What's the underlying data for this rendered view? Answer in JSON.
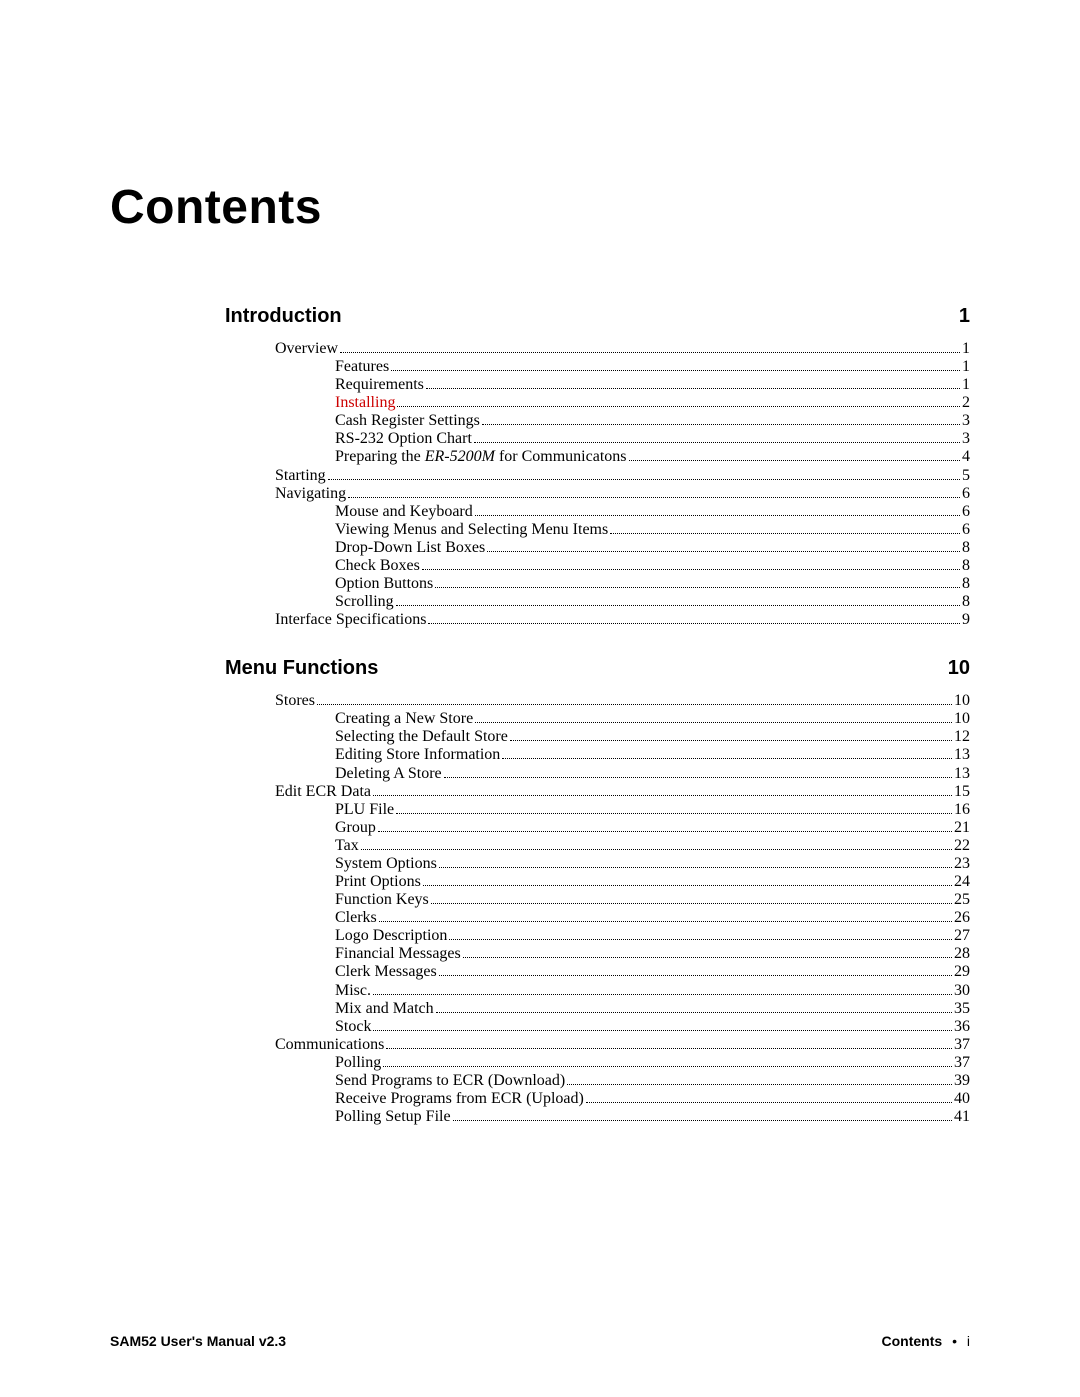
{
  "title": "Contents",
  "colors": {
    "text": "#000000",
    "highlight": "#cc0000",
    "background": "#ffffff"
  },
  "fonts": {
    "title": {
      "family": "Arial",
      "weight": 700,
      "size_pt": 36
    },
    "section": {
      "family": "Arial",
      "weight": 700,
      "size_pt": 15
    },
    "entry": {
      "family": "Times New Roman",
      "weight": 400,
      "size_pt": 12
    }
  },
  "sections": [
    {
      "heading": "Introduction",
      "page": "1",
      "entries": [
        {
          "level": 1,
          "label": "Overview",
          "page": "1"
        },
        {
          "level": 2,
          "label": "Features",
          "page": "1"
        },
        {
          "level": 2,
          "label": "Requirements",
          "page": "1"
        },
        {
          "level": 2,
          "label": "Installing",
          "page": "2",
          "highlight": true
        },
        {
          "level": 2,
          "label": "Cash Register Settings",
          "page": "3"
        },
        {
          "level": 2,
          "label": "RS-232 Option Chart",
          "page": "3"
        },
        {
          "level": 2,
          "label_parts": [
            {
              "text": "Preparing the "
            },
            {
              "text": "ER-5200M",
              "italic": true
            },
            {
              "text": " for Communicatons"
            }
          ],
          "page": "4"
        },
        {
          "level": 1,
          "label": "Starting",
          "page": "5"
        },
        {
          "level": 1,
          "label": "Navigating",
          "page": "6"
        },
        {
          "level": 2,
          "label": "Mouse and Keyboard",
          "page": "6"
        },
        {
          "level": 2,
          "label": "Viewing Menus and Selecting Menu Items",
          "page": "6"
        },
        {
          "level": 2,
          "label": "Drop-Down List Boxes",
          "page": "8"
        },
        {
          "level": 2,
          "label": "Check Boxes",
          "page": "8"
        },
        {
          "level": 2,
          "label": "Option Buttons",
          "page": "8"
        },
        {
          "level": 2,
          "label": "Scrolling",
          "page": "8"
        },
        {
          "level": 1,
          "label": "Interface Specifications",
          "page": "9"
        }
      ]
    },
    {
      "heading": "Menu Functions",
      "page": "10",
      "entries": [
        {
          "level": 1,
          "label": "Stores",
          "page": "10"
        },
        {
          "level": 2,
          "label": "Creating a New Store",
          "page": "10"
        },
        {
          "level": 2,
          "label": "Selecting the Default Store",
          "page": "12"
        },
        {
          "level": 2,
          "label": "Editing Store Information",
          "page": "13"
        },
        {
          "level": 2,
          "label": "Deleting A Store",
          "page": "13"
        },
        {
          "level": 1,
          "label": "Edit ECR Data",
          "page": "15"
        },
        {
          "level": 2,
          "label": "PLU File",
          "page": "16"
        },
        {
          "level": 2,
          "label": "Group",
          "page": "21"
        },
        {
          "level": 2,
          "label": "Tax",
          "page": "22"
        },
        {
          "level": 2,
          "label": "System Options",
          "page": "23"
        },
        {
          "level": 2,
          "label": "Print Options",
          "page": "24"
        },
        {
          "level": 2,
          "label": "Function Keys",
          "page": "25"
        },
        {
          "level": 2,
          "label": "Clerks",
          "page": "26"
        },
        {
          "level": 2,
          "label": "Logo Description",
          "page": "27"
        },
        {
          "level": 2,
          "label": "Financial Messages",
          "page": "28"
        },
        {
          "level": 2,
          "label": "Clerk Messages",
          "page": "29"
        },
        {
          "level": 2,
          "label": "Misc.",
          "page": "30"
        },
        {
          "level": 2,
          "label": "Mix and Match",
          "page": "35"
        },
        {
          "level": 2,
          "label": "Stock",
          "page": "36"
        },
        {
          "level": 1,
          "label": "Communications",
          "page": "37"
        },
        {
          "level": 2,
          "label": "Polling",
          "page": "37"
        },
        {
          "level": 2,
          "label": "Send Programs to ECR (Download)",
          "page": "39"
        },
        {
          "level": 2,
          "label": "Receive Programs from ECR (Upload)",
          "page": "40"
        },
        {
          "level": 2,
          "label": "Polling Setup File",
          "page": "41"
        }
      ]
    }
  ],
  "footer": {
    "left": "SAM52 User's Manual v2.3",
    "right_label": "Contents",
    "right_bullet": "•",
    "right_page": "i"
  }
}
